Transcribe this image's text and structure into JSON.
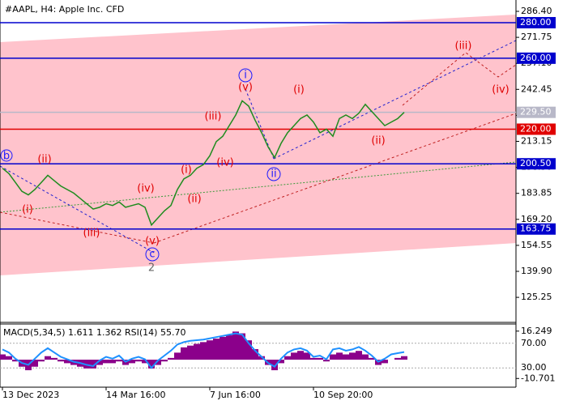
{
  "chart_data": [
    {
      "type": "line",
      "title": "#AAPL, H4:  Apple Inc. CFD",
      "categories": [
        "13 Dec 2023",
        null,
        null,
        null,
        null,
        null,
        null,
        null,
        null,
        null,
        null,
        null,
        null,
        null,
        null,
        null,
        "14 Mar 16:00",
        null,
        null,
        null,
        null,
        null,
        null,
        null,
        null,
        null,
        null,
        null,
        null,
        null,
        null,
        null,
        "7 Jun 16:00",
        null,
        null,
        null,
        null,
        null,
        null,
        null,
        null,
        null,
        null,
        null,
        null,
        null,
        null,
        null,
        "10 Sep 20:00",
        null,
        null,
        null,
        null,
        null,
        null,
        null,
        null,
        null,
        null,
        null,
        null,
        null,
        null
      ],
      "values": [
        198,
        195,
        190,
        185,
        183,
        186,
        190,
        194,
        191,
        188,
        186,
        184,
        181,
        178,
        175,
        176,
        178,
        177,
        179,
        176,
        177,
        178,
        176,
        166,
        170,
        174,
        177,
        186,
        192,
        194,
        198,
        200,
        205,
        213,
        216,
        222,
        228,
        236,
        233,
        225,
        218,
        210,
        204,
        212,
        218,
        222,
        226,
        228,
        224,
        218,
        220,
        216,
        226,
        228,
        226,
        229,
        234,
        230,
        226,
        222,
        224,
        226,
        229.5
      ],
      "color": "#1e8c1e",
      "ylim": [
        111.15,
        292.79
      ],
      "yticks": [
        {
          "value": 286.4,
          "label": "286.40"
        },
        {
          "value": 271.75,
          "label": "271.75"
        },
        {
          "value": 257.1,
          "label": "257.10"
        },
        {
          "value": 242.45,
          "label": "242.45"
        },
        {
          "value": 227.8,
          "label": "227.80"
        },
        {
          "value": 213.15,
          "label": "213.15"
        },
        {
          "value": 198.5,
          "label": "198.50"
        },
        {
          "value": 183.85,
          "label": "183.85"
        },
        {
          "value": 169.2,
          "label": "169.20"
        },
        {
          "value": 154.55,
          "label": "154.55"
        },
        {
          "value": 139.9,
          "label": "139.90"
        },
        {
          "value": 125.25,
          "label": "125.25"
        }
      ],
      "levels": [
        {
          "value": 280,
          "label": "280.00",
          "color": "#0000cd"
        },
        {
          "value": 260,
          "label": "260.00",
          "color": "#0000cd"
        },
        {
          "value": 229.5,
          "label": "229.50",
          "color": "#b8b8c8"
        },
        {
          "value": 220,
          "label": "220.00",
          "color": "#e00000"
        },
        {
          "value": 200.5,
          "label": "200.50",
          "color": "#0000cd"
        },
        {
          "value": 163.75,
          "label": "163.75",
          "color": "#0000cd"
        }
      ],
      "annotations": [
        "b",
        "(ii)",
        "(i)",
        "(iii)",
        "(iv)",
        "(v)",
        "c",
        "2",
        "(i)",
        "(ii)",
        "(iii)",
        "(iv)",
        "(v)",
        "i",
        "ii",
        "(i)",
        "(ii)",
        "(iii)",
        "(iv)"
      ]
    },
    {
      "type": "macd",
      "label": "MACD(5,34,5) 1.611 1.362 RSI(14) 55.70",
      "values": [
        3,
        2,
        -1,
        -4,
        -6,
        -4,
        -1,
        2,
        1,
        -1,
        -2,
        -3,
        -4,
        -5,
        -5,
        -3,
        -2,
        -2,
        -1,
        -3,
        -2,
        -1,
        -2,
        -5,
        -3,
        -1,
        1,
        4,
        7,
        8,
        9,
        10,
        11,
        12,
        13,
        14,
        16,
        15,
        11,
        6,
        2,
        -3,
        -6,
        -2,
        2,
        4,
        5,
        4,
        1,
        1,
        -1,
        3,
        4,
        3,
        4,
        5,
        3,
        1,
        -3,
        -2,
        0,
        1,
        2
      ],
      "color": "#8b008b",
      "ylim": [
        -15.19,
        19.84
      ],
      "yticks": [
        16.249,
        -10.701
      ],
      "series": [
        {
          "axis": "y2",
          "color": "#1e90ff",
          "values": [
            60,
            55,
            45,
            38,
            35,
            45,
            55,
            62,
            55,
            48,
            44,
            40,
            38,
            35,
            33,
            42,
            48,
            45,
            50,
            40,
            45,
            48,
            44,
            30,
            42,
            50,
            58,
            68,
            72,
            74,
            75,
            76,
            78,
            80,
            82,
            84,
            86,
            84,
            70,
            58,
            48,
            38,
            32,
            45,
            55,
            60,
            62,
            58,
            48,
            50,
            44,
            60,
            62,
            58,
            60,
            64,
            58,
            50,
            40,
            45,
            52,
            54,
            55.7
          ]
        }
      ],
      "y2lim": [
        0,
        100
      ],
      "y2ticks": [
        {
          "value": 70,
          "label": "70.00"
        },
        {
          "value": 30,
          "label": "30.00"
        }
      ]
    }
  ]
}
